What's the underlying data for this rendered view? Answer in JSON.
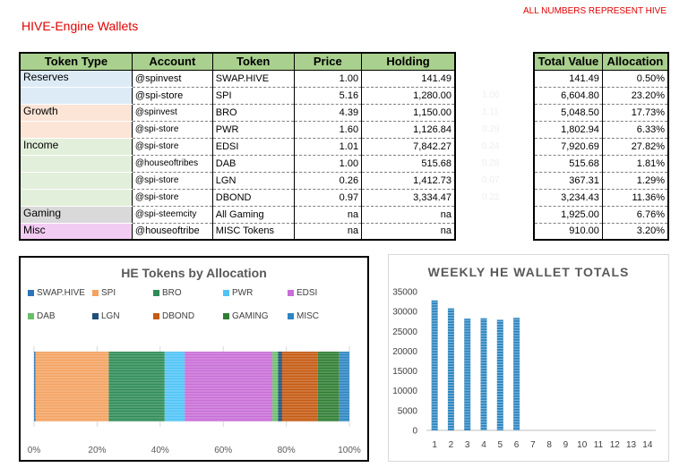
{
  "page": {
    "title": "HIVE-Engine Wallets",
    "note": "ALL NUMBERS REPRESENT HIVE"
  },
  "table": {
    "headers": [
      "Token Type",
      "Account",
      "Token",
      "Price",
      "Holding"
    ],
    "rows": [
      {
        "type": "Reserves",
        "account": "@spinvest",
        "token": "SWAP.HIVE",
        "price": "1.00",
        "holding": "141.49"
      },
      {
        "type": "",
        "account": "@spi-store",
        "token": "SPI",
        "price": "5.16",
        "holding": "1,280.00"
      },
      {
        "type": "Growth",
        "account": "@spinvest",
        "token": "BRO",
        "price": "4.39",
        "holding": "1,150.00"
      },
      {
        "type": "",
        "account": "@spi-store",
        "token": "PWR",
        "price": "1.60",
        "holding": "1,126.84"
      },
      {
        "type": "Income",
        "account": "@spi-store",
        "token": "EDSI",
        "price": "1.01",
        "holding": "7,842.27"
      },
      {
        "type": "",
        "account": "@houseoftribes",
        "token": "DAB",
        "price": "1.00",
        "holding": "515.68"
      },
      {
        "type": "",
        "account": "@spi-store",
        "token": "LGN",
        "price": "0.26",
        "holding": "1,412.73"
      },
      {
        "type": "",
        "account": "@spi-store",
        "token": "DBOND",
        "price": "0.97",
        "holding": "3,334.47"
      },
      {
        "type": "Gaming",
        "account": "@spi-steemcity",
        "token": "All Gaming",
        "price": "na",
        "holding": "na"
      },
      {
        "type": "Misc",
        "account": "@houseoftribe",
        "token": "MISC Tokens",
        "price": "na",
        "holding": "na"
      }
    ]
  },
  "side_table": {
    "headers": [
      "Total Value",
      "Allocation"
    ],
    "rows": [
      {
        "value": "141.49",
        "alloc": "0.50%"
      },
      {
        "value": "6,604.80",
        "alloc": "23.20%"
      },
      {
        "value": "5,048.50",
        "alloc": "17.73%"
      },
      {
        "value": "1,802.94",
        "alloc": "6.33%"
      },
      {
        "value": "7,920.69",
        "alloc": "27.82%"
      },
      {
        "value": "515.68",
        "alloc": "1.81%"
      },
      {
        "value": "367.31",
        "alloc": "1.29%"
      },
      {
        "value": "3,234.43",
        "alloc": "11.36%"
      },
      {
        "value": "1,925.00",
        "alloc": "6.76%"
      },
      {
        "value": "910.00",
        "alloc": "3.20%"
      }
    ]
  },
  "ghost_values": [
    "1.06",
    "1.11",
    "0.29",
    "0.24",
    "0.28",
    "0.07",
    "0.22"
  ],
  "colors": {
    "reserves": "#ddebf7",
    "growth": "#fce4d6",
    "income": "#e2efda",
    "gaming": "#d9d9d9",
    "misc": "#f2ccf2",
    "header": "#a9d08e",
    "title_red": "#e00000"
  },
  "chart_data": [
    {
      "type": "bar",
      "orientation": "horizontal-stacked",
      "title": "HE Tokens by Allocation",
      "series": [
        {
          "name": "SWAP.HIVE",
          "value": 0.5,
          "color": "#2e75b6"
        },
        {
          "name": "SPI",
          "value": 23.2,
          "color": "#f4a261"
        },
        {
          "name": "BRO",
          "value": 17.73,
          "color": "#2e8b57"
        },
        {
          "name": "PWR",
          "value": 6.33,
          "color": "#4fc3f7"
        },
        {
          "name": "EDSI",
          "value": 27.82,
          "color": "#c86dd7"
        },
        {
          "name": "DAB",
          "value": 1.81,
          "color": "#6abf69"
        },
        {
          "name": "LGN",
          "value": 1.29,
          "color": "#1f4e79"
        },
        {
          "name": "DBOND",
          "value": 11.36,
          "color": "#c55a11"
        },
        {
          "name": "GAMING",
          "value": 6.76,
          "color": "#2f7d32"
        },
        {
          "name": "MISC",
          "value": 3.2,
          "color": "#2e86c1"
        }
      ],
      "x_ticks": [
        "0%",
        "20%",
        "40%",
        "60%",
        "80%",
        "100%"
      ],
      "xlim": [
        0,
        100
      ]
    },
    {
      "type": "bar",
      "title": "WEEKLY HE WALLET TOTALS",
      "categories": [
        "1",
        "2",
        "3",
        "4",
        "5",
        "6",
        "7",
        "8",
        "9",
        "10",
        "11",
        "12",
        "13",
        "14"
      ],
      "values": [
        32800,
        30800,
        28200,
        28300,
        27900,
        28400,
        null,
        null,
        null,
        null,
        null,
        null,
        null,
        null
      ],
      "y_ticks": [
        "0",
        "5000",
        "10000",
        "15000",
        "20000",
        "25000",
        "30000",
        "35000"
      ],
      "ylim": [
        0,
        35000
      ],
      "color": "#2e86c1"
    }
  ]
}
